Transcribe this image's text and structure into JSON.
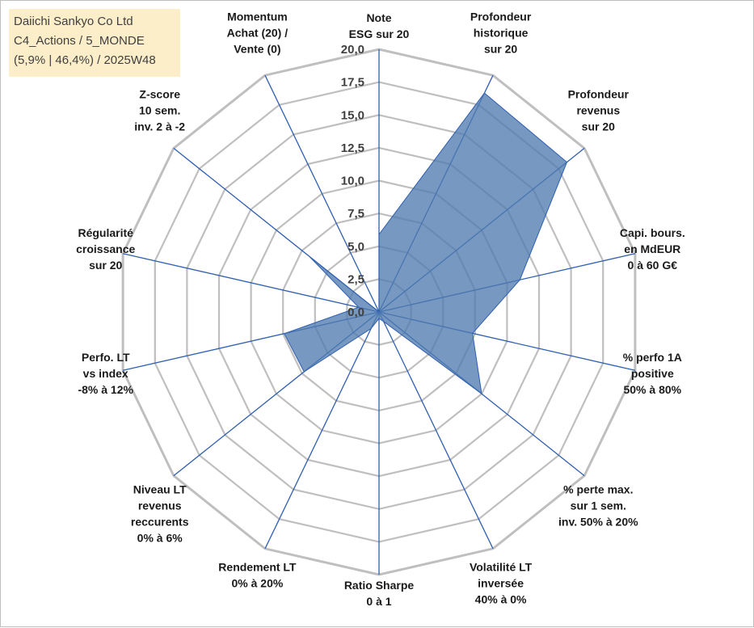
{
  "info_box": {
    "line1": "Daiichi Sankyo Co Ltd",
    "line2": "C4_Actions / 5_MONDE",
    "line3": "(5,9% | 46,4%) / 2025W48"
  },
  "colors": {
    "fill": "#4f7bb0",
    "spoke": "#2f5fb0",
    "grid": "#bfbfbf",
    "info_bg": "#fdeeca"
  },
  "chart_data": {
    "type": "radar",
    "rmin": 0,
    "rmax": 20,
    "tick_labels": [
      "0,0",
      "2,5",
      "5,0",
      "7,5",
      "10,0",
      "12,5",
      "15,0",
      "17,5",
      "20,0"
    ],
    "ticks": [
      0,
      2.5,
      5,
      7.5,
      10,
      12.5,
      15,
      17.5,
      20
    ],
    "grid_levels": [
      2.5,
      5,
      7.5,
      10,
      12.5,
      15,
      17.5,
      20
    ],
    "axes": [
      {
        "label": [
          "Note",
          "ESG sur 20"
        ],
        "value": 5.9
      },
      {
        "label": [
          "Profondeur",
          "historique",
          "sur 20"
        ],
        "value": 18.5
      },
      {
        "label": [
          "Profondeur",
          "revenus",
          "sur 20"
        ],
        "value": 18.3
      },
      {
        "label": [
          "Capi. bours.",
          "en MdEUR",
          "0 à 60 G€"
        ],
        "value": 11.0
      },
      {
        "label": [
          "% perfo 1A",
          "positive",
          "50% à 80%"
        ],
        "value": 7.3
      },
      {
        "label": [
          "% perte max.",
          "sur 1 sem.",
          "inv. 50% à 20%"
        ],
        "value": 10.0
      },
      {
        "label": [
          "Volatilité LT",
          "inversée",
          "40% à 0%"
        ],
        "value": 0.8
      },
      {
        "label": [
          "Ratio Sharpe",
          "0 à 1"
        ],
        "value": 0.5
      },
      {
        "label": [
          "Rendement LT",
          "0% à 20%"
        ],
        "value": 1.4
      },
      {
        "label": [
          "Niveau LT",
          "revenus",
          "reccurents",
          "0% à 6%"
        ],
        "value": 7.3
      },
      {
        "label": [
          "Perfo. LT",
          "vs index",
          "-8% à 12%"
        ],
        "value": 7.4
      },
      {
        "label": [
          "Régularité",
          "croissance",
          "sur 20"
        ],
        "value": 1.6
      },
      {
        "label": [
          "Z-score",
          "10 sem.",
          "inv. 2 à -2"
        ],
        "value": 6.8
      },
      {
        "label": [
          "Momentum",
          "Achat (20) /",
          "Vente (0)"
        ],
        "value": 0.0
      }
    ]
  }
}
